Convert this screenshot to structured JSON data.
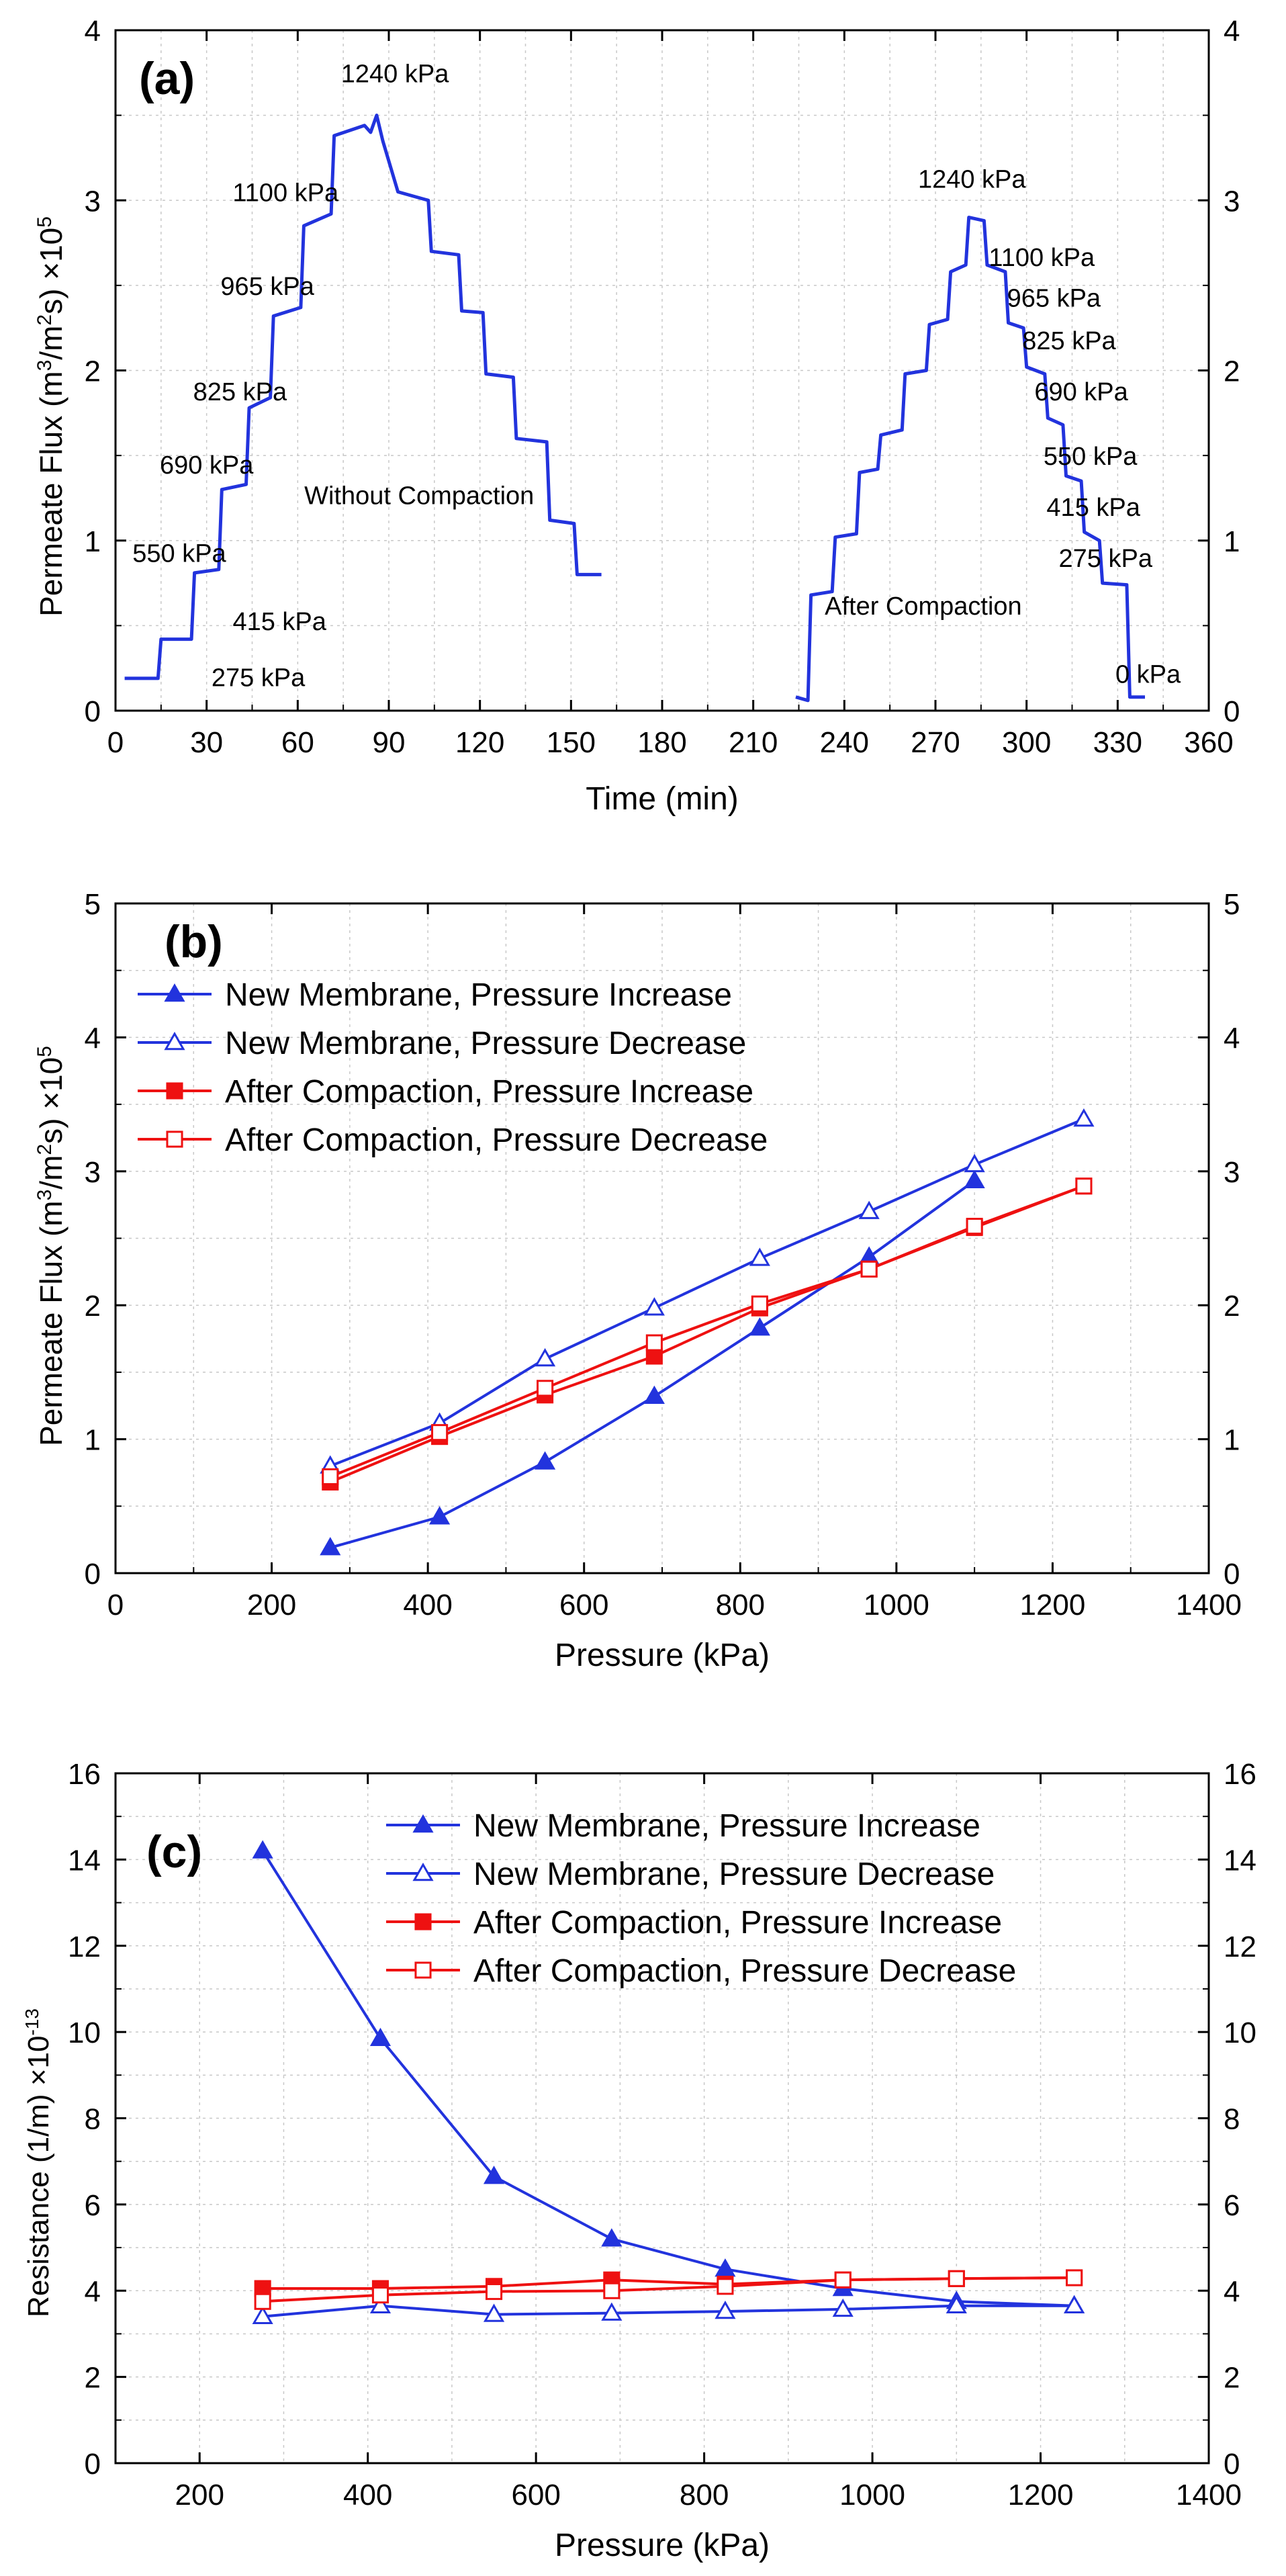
{
  "colors": {
    "blue": "#2233dd",
    "red": "#ee1111",
    "grid": "#c8c8c8",
    "axis": "#000000"
  },
  "chart_data": [
    {
      "type": "line",
      "panel_label": "(a)",
      "xlabel": "Time (min)",
      "ylabel_main": "Permeate Flux (m",
      "ylabel_sup1": "3",
      "ylabel_mid": "/m",
      "ylabel_sup2": "2",
      "ylabel_end": "s) ×10",
      "ylabel_sup3": "5",
      "xlim": [
        0,
        360
      ],
      "ylim": [
        0,
        4
      ],
      "xticks": [
        0,
        30,
        60,
        90,
        120,
        150,
        180,
        210,
        240,
        270,
        300,
        330,
        360
      ],
      "yticks": [
        0,
        1,
        2,
        3,
        4
      ],
      "series": [
        {
          "name": "Without Compaction",
          "color": "blue",
          "steps": [
            [
              3,
              0.19
            ],
            [
              14,
              0.19
            ],
            [
              15,
              0.42
            ],
            [
              25,
              0.42
            ],
            [
              26,
              0.81
            ],
            [
              34,
              0.83
            ],
            [
              35,
              1.3
            ],
            [
              43,
              1.33
            ],
            [
              44,
              1.78
            ],
            [
              51,
              1.84
            ],
            [
              52,
              2.32
            ],
            [
              61,
              2.37
            ],
            [
              62,
              2.85
            ],
            [
              71,
              2.92
            ],
            [
              72,
              3.38
            ],
            [
              82,
              3.44
            ],
            [
              84,
              3.4
            ],
            [
              86,
              3.5
            ],
            [
              88,
              3.35
            ],
            [
              93,
              3.05
            ],
            [
              103,
              3.0
            ],
            [
              104,
              2.7
            ],
            [
              113,
              2.68
            ],
            [
              114,
              2.35
            ],
            [
              121,
              2.34
            ],
            [
              122,
              1.98
            ],
            [
              131,
              1.96
            ],
            [
              132,
              1.6
            ],
            [
              142,
              1.58
            ],
            [
              143,
              1.12
            ],
            [
              151,
              1.1
            ],
            [
              152,
              0.8
            ],
            [
              160,
              0.8
            ]
          ]
        },
        {
          "name": "After Compaction",
          "color": "blue",
          "steps": [
            [
              224,
              0.08
            ],
            [
              228,
              0.06
            ],
            [
              229,
              0.68
            ],
            [
              236,
              0.7
            ],
            [
              237,
              1.02
            ],
            [
              244,
              1.04
            ],
            [
              245,
              1.4
            ],
            [
              251,
              1.42
            ],
            [
              252,
              1.62
            ],
            [
              259,
              1.65
            ],
            [
              260,
              1.98
            ],
            [
              267,
              2.0
            ],
            [
              268,
              2.27
            ],
            [
              274,
              2.3
            ],
            [
              275,
              2.58
            ],
            [
              280,
              2.62
            ],
            [
              281,
              2.9
            ],
            [
              286,
              2.88
            ],
            [
              287,
              2.62
            ],
            [
              293,
              2.58
            ],
            [
              294,
              2.28
            ],
            [
              299,
              2.25
            ],
            [
              300,
              2.02
            ],
            [
              306,
              1.98
            ],
            [
              307,
              1.72
            ],
            [
              312,
              1.68
            ],
            [
              313,
              1.38
            ],
            [
              318,
              1.35
            ],
            [
              319,
              1.05
            ],
            [
              324,
              1.0
            ],
            [
              325,
              0.75
            ],
            [
              333,
              0.74
            ],
            [
              334,
              0.08
            ],
            [
              339,
              0.08
            ]
          ]
        }
      ],
      "annotations": [
        {
          "text": "1240 kPa",
          "x": 92,
          "y": 3.75
        },
        {
          "text": "1100 kPa",
          "x": 56,
          "y": 3.05
        },
        {
          "text": "965 kPa",
          "x": 50,
          "y": 2.5
        },
        {
          "text": "825 kPa",
          "x": 41,
          "y": 1.88
        },
        {
          "text": "690 kPa",
          "x": 30,
          "y": 1.45
        },
        {
          "text": "550 kPa",
          "x": 21,
          "y": 0.93
        },
        {
          "text": "415 kPa",
          "x": 54,
          "y": 0.53
        },
        {
          "text": "275 kPa",
          "x": 47,
          "y": 0.2
        },
        {
          "text": "Without Compaction",
          "x": 100,
          "y": 1.27
        },
        {
          "text": "1240 kPa",
          "x": 282,
          "y": 3.13
        },
        {
          "text": "1100 kPa",
          "x": 305,
          "y": 2.67
        },
        {
          "text": "965 kPa",
          "x": 309,
          "y": 2.43
        },
        {
          "text": "825 kPa",
          "x": 314,
          "y": 2.18
        },
        {
          "text": "690 kPa",
          "x": 318,
          "y": 1.88
        },
        {
          "text": "550 kPa",
          "x": 321,
          "y": 1.5
        },
        {
          "text": "415 kPa",
          "x": 322,
          "y": 1.2
        },
        {
          "text": "275 kPa",
          "x": 326,
          "y": 0.9
        },
        {
          "text": "After Compaction",
          "x": 266,
          "y": 0.62
        },
        {
          "text": "0 kPa",
          "x": 340,
          "y": 0.22
        }
      ]
    },
    {
      "type": "line",
      "panel_label": "(b)",
      "xlabel": "Pressure (kPa)",
      "ylabel_main": "Permeate Flux (m",
      "ylabel_sup1": "3",
      "ylabel_mid": "/m",
      "ylabel_sup2": "2",
      "ylabel_end": "s) ×10",
      "ylabel_sup3": "5",
      "xlim": [
        0,
        1400
      ],
      "ylim": [
        0,
        5
      ],
      "xticks": [
        0,
        200,
        400,
        600,
        800,
        1000,
        1200,
        1400
      ],
      "yticks": [
        0,
        1,
        2,
        3,
        4,
        5
      ],
      "x": [
        275,
        415,
        550,
        690,
        825,
        965,
        1100,
        1240
      ],
      "series": [
        {
          "name": "New Membrane, Pressure Increase",
          "color": "blue",
          "marker": "triangle-filled",
          "x": [
            275,
            415,
            550,
            690,
            825,
            965,
            1100
          ],
          "values": [
            0.19,
            0.42,
            0.83,
            1.32,
            1.83,
            2.36,
            2.93
          ]
        },
        {
          "name": "New Membrane, Pressure Decrease",
          "color": "blue",
          "marker": "triangle-open",
          "x": [
            275,
            415,
            550,
            690,
            825,
            965,
            1100,
            1240
          ],
          "values": [
            0.8,
            1.12,
            1.6,
            1.98,
            2.35,
            2.7,
            3.05,
            3.39
          ]
        },
        {
          "name": "After Compaction, Pressure Increase",
          "color": "red",
          "marker": "square-filled",
          "x": [
            275,
            415,
            550,
            690,
            825,
            965,
            1100,
            1240
          ],
          "values": [
            0.68,
            1.02,
            1.33,
            1.62,
            1.98,
            2.27,
            2.58,
            2.89
          ]
        },
        {
          "name": "After Compaction, Pressure Decrease",
          "color": "red",
          "marker": "square-open",
          "x": [
            275,
            415,
            550,
            690,
            825,
            965,
            1100,
            1240
          ],
          "values": [
            0.72,
            1.05,
            1.38,
            1.72,
            2.01,
            2.27,
            2.59,
            2.89
          ]
        }
      ],
      "legend_position": "upper-left"
    },
    {
      "type": "line",
      "panel_label": "(c)",
      "xlabel": "Pressure (kPa)",
      "ylabel_main": "Resistance (1/m) ×10",
      "ylabel_sup1": "-13",
      "xlim": [
        100,
        1400
      ],
      "ylim": [
        0,
        16
      ],
      "xticks": [
        200,
        400,
        600,
        800,
        1000,
        1200,
        1400
      ],
      "yticks": [
        0,
        2,
        4,
        6,
        8,
        10,
        12,
        14,
        16
      ],
      "series": [
        {
          "name": "New Membrane, Pressure Increase",
          "color": "blue",
          "marker": "triangle-filled",
          "x": [
            275,
            415,
            550,
            690,
            825,
            965,
            1100,
            1240
          ],
          "values": [
            14.2,
            9.85,
            6.65,
            5.2,
            4.5,
            4.05,
            3.75,
            3.65
          ]
        },
        {
          "name": "New Membrane, Pressure Decrease",
          "color": "blue",
          "marker": "triangle-open",
          "x": [
            275,
            415,
            550,
            690,
            825,
            965,
            1100,
            1240
          ],
          "values": [
            3.4,
            3.65,
            3.45,
            3.48,
            3.52,
            3.57,
            3.65,
            3.65
          ]
        },
        {
          "name": "After Compaction,  Pressure Increase",
          "color": "red",
          "marker": "square-filled",
          "x": [
            275,
            415,
            550,
            690,
            825,
            965,
            1100,
            1240
          ],
          "values": [
            4.05,
            4.05,
            4.1,
            4.25,
            4.15,
            4.25,
            4.28,
            4.3
          ]
        },
        {
          "name": "After Compaction,  Pressure Decrease",
          "color": "red",
          "marker": "square-open",
          "x": [
            275,
            415,
            550,
            690,
            825,
            965,
            1100,
            1240
          ],
          "values": [
            3.75,
            3.9,
            3.98,
            4.0,
            4.1,
            4.25,
            4.28,
            4.3
          ]
        }
      ],
      "legend_position": "upper-center"
    }
  ]
}
